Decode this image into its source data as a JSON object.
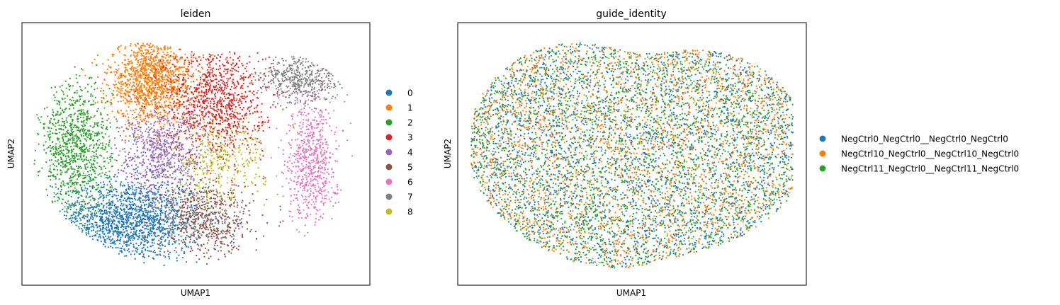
{
  "chart_data": [
    {
      "type": "scatter",
      "title": "leiden",
      "xlabel": "UMAP1",
      "ylabel": "UMAP2",
      "xticks": [],
      "yticks": [],
      "grid": false,
      "legend_position": "right-outside",
      "series": [
        {
          "name": "0",
          "color": "#1f77b4",
          "n_points": 1550,
          "center": [
            -0.75,
            -0.55
          ],
          "spread": [
            0.42,
            0.17
          ]
        },
        {
          "name": "1",
          "color": "#ff7f0e",
          "n_points": 1350,
          "center": [
            -0.5,
            0.62
          ],
          "spread": [
            0.24,
            0.18
          ]
        },
        {
          "name": "2",
          "color": "#2ca02c",
          "n_points": 1000,
          "center": [
            -1.35,
            0.05
          ],
          "spread": [
            0.2,
            0.28
          ]
        },
        {
          "name": "3",
          "color": "#d62728",
          "n_points": 1050,
          "center": [
            0.22,
            0.45
          ],
          "spread": [
            0.28,
            0.24
          ]
        },
        {
          "name": "4",
          "color": "#9467bd",
          "n_points": 700,
          "center": [
            -0.4,
            0.0
          ],
          "spread": [
            0.24,
            0.19
          ]
        },
        {
          "name": "5",
          "color": "#8c564b",
          "n_points": 650,
          "center": [
            0.12,
            -0.55
          ],
          "spread": [
            0.26,
            0.16
          ]
        },
        {
          "name": "6",
          "color": "#e377c2",
          "n_points": 700,
          "center": [
            1.3,
            -0.05
          ],
          "spread": [
            0.14,
            0.28
          ]
        },
        {
          "name": "7",
          "color": "#7f7f7f",
          "n_points": 450,
          "center": [
            1.2,
            0.62
          ],
          "spread": [
            0.24,
            0.1
          ]
        },
        {
          "name": "8",
          "color": "#bcbd22",
          "n_points": 350,
          "center": [
            0.25,
            -0.05
          ],
          "spread": [
            0.26,
            0.17
          ]
        }
      ]
    },
    {
      "type": "scatter",
      "title": "guide_identity",
      "xlabel": "UMAP1",
      "ylabel": "UMAP2",
      "xticks": [],
      "yticks": [],
      "grid": false,
      "legend_position": "right-outside",
      "series": [
        {
          "name": "NegCtrl0_NegCtrl0__NegCtrl0_NegCtrl0",
          "color": "#1f77b4",
          "n_points": 2500
        },
        {
          "name": "NegCtrl10_NegCtrl0__NegCtrl10_NegCtrl0",
          "color": "#ff7f0e",
          "n_points": 2500
        },
        {
          "name": "NegCtrl11_NegCtrl0__NegCtrl11_NegCtrl0",
          "color": "#2ca02c",
          "n_points": 2500
        }
      ]
    }
  ]
}
